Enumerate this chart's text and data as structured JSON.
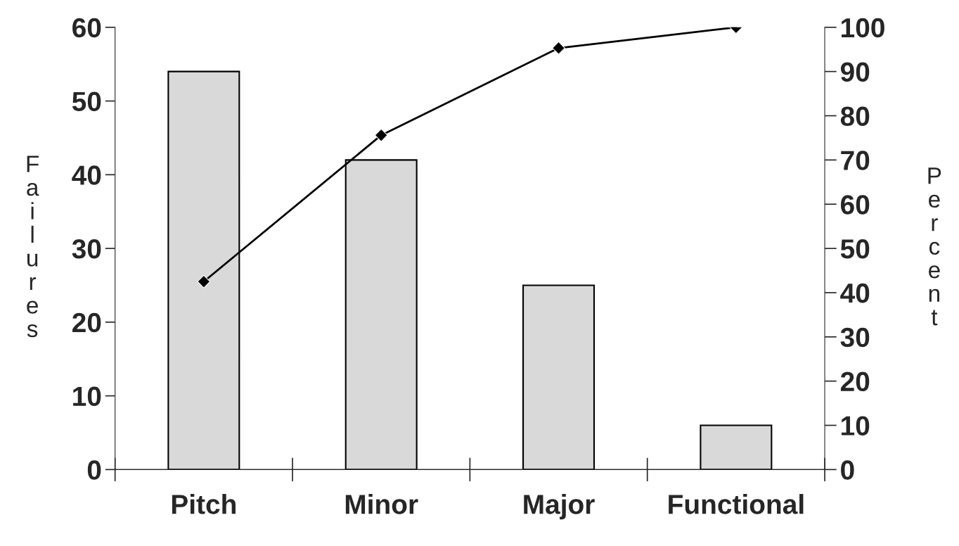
{
  "chart_data": {
    "type": "bar",
    "categories": [
      "Pitch",
      "Minor",
      "Major",
      "Functional"
    ],
    "series": [
      {
        "color": "#d9d9d9",
        "values": [
          54,
          42,
          25,
          6
        ]
      },
      {
        "type": "line",
        "axis": "y2",
        "color": "#000000",
        "marker": "diamond",
        "line_style": "solid",
        "values": [
          42.5,
          75.6,
          95.3,
          100
        ]
      }
    ],
    "ylabel": "Failures",
    "y2label": "Percent",
    "ylim": [
      0,
      60
    ],
    "yticks": [
      0,
      10,
      20,
      30,
      40,
      50,
      60
    ],
    "y2lim": [
      0,
      100
    ],
    "y2ticks": [
      0,
      10,
      20,
      30,
      40,
      50,
      60,
      70,
      80,
      90,
      100
    ],
    "grid": false,
    "legend": false
  }
}
